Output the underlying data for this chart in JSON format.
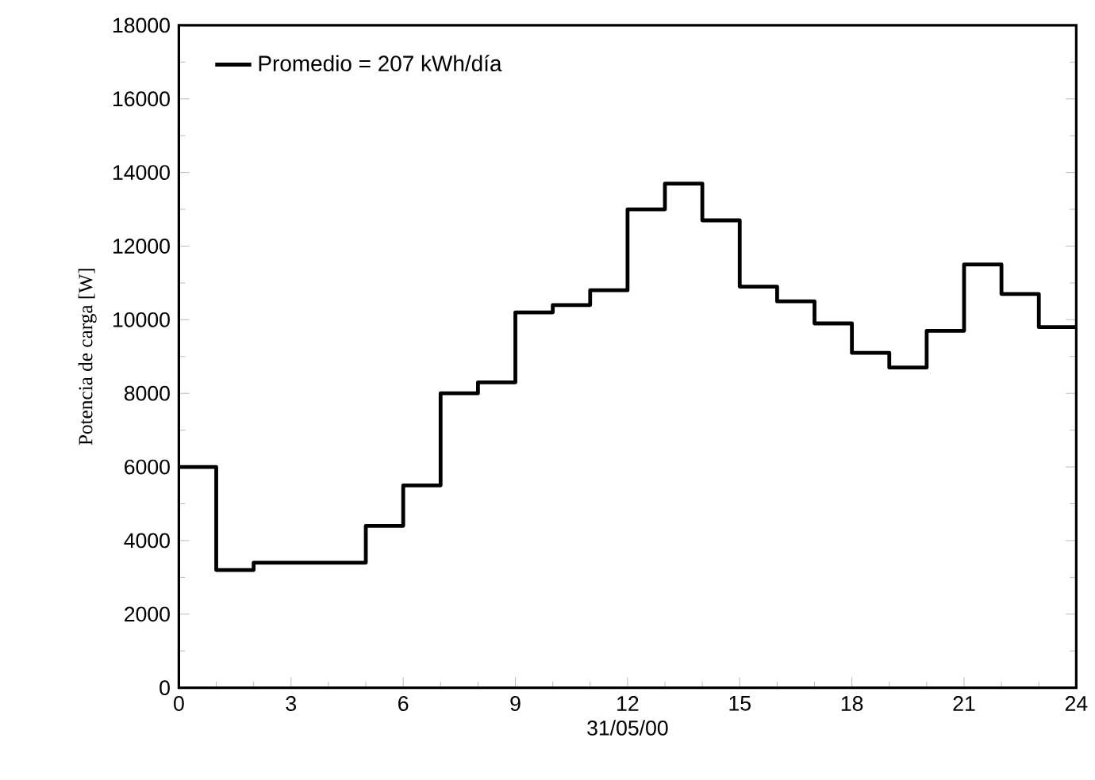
{
  "chart_data": {
    "type": "step",
    "x": [
      0,
      1,
      2,
      3,
      4,
      5,
      6,
      7,
      8,
      9,
      10,
      11,
      12,
      13,
      14,
      15,
      16,
      17,
      18,
      19,
      20,
      21,
      22,
      23,
      24
    ],
    "series": [
      {
        "name": "Promedio = 207 kWh/día",
        "color": "#000000",
        "values": [
          6000,
          3200,
          3400,
          3400,
          3400,
          4400,
          5500,
          8000,
          8300,
          10200,
          10400,
          10800,
          13000,
          13700,
          12700,
          10900,
          10500,
          9900,
          9100,
          8700,
          9700,
          11500,
          10700,
          9800,
          9800
        ]
      }
    ],
    "xlabel": "31/05/00",
    "ylabel": "Potencia de carga [W]",
    "xlim": [
      0,
      24
    ],
    "xticks": [
      0,
      3,
      6,
      9,
      12,
      15,
      18,
      21,
      24
    ],
    "ylim": [
      0,
      18000
    ],
    "yticks": [
      0,
      2000,
      4000,
      6000,
      8000,
      10000,
      12000,
      14000,
      16000,
      18000
    ],
    "legend": "top left",
    "grid": false,
    "line_style": "solid"
  }
}
